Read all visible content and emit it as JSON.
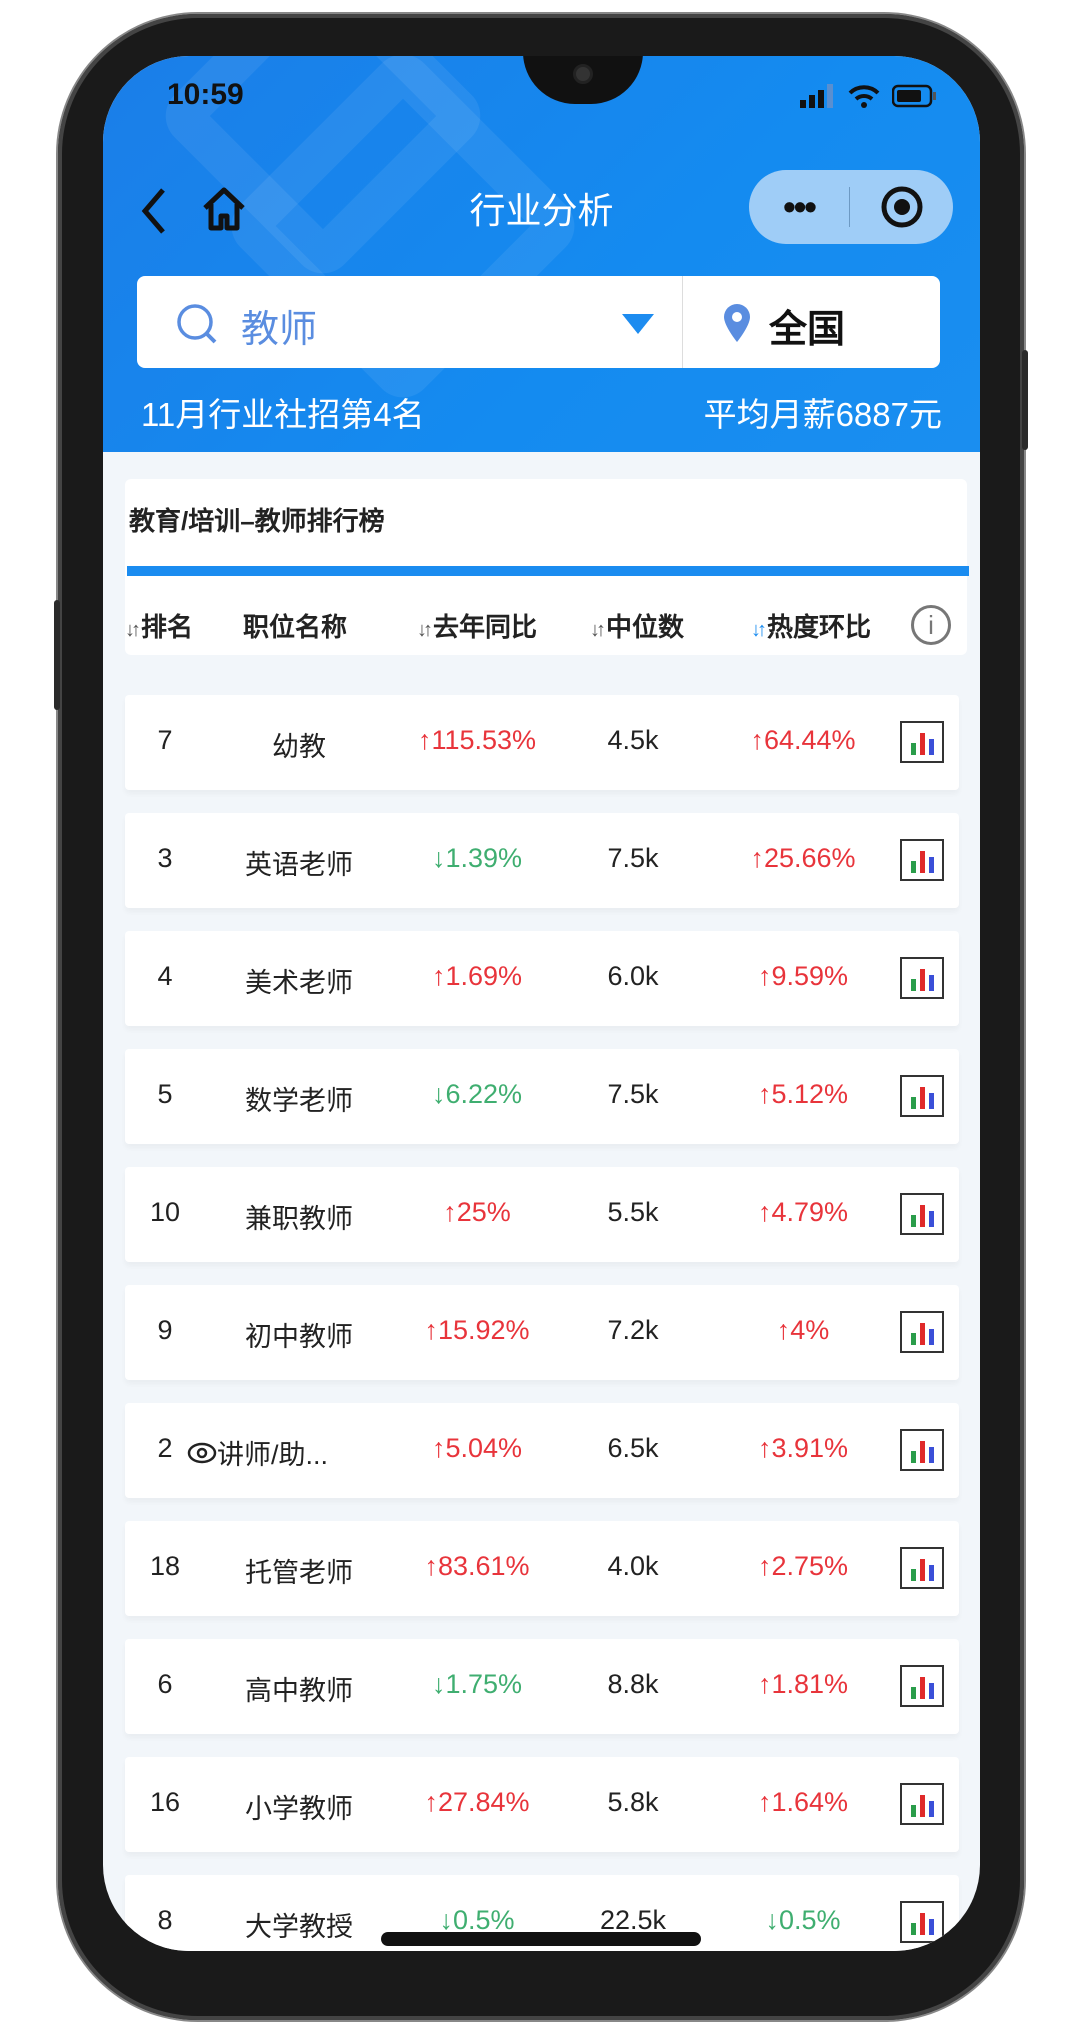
{
  "status": {
    "time": "10:59"
  },
  "nav": {
    "title": "行业分析",
    "back_icon": "chevron-left-icon",
    "home_icon": "home-icon",
    "more_label": "•••"
  },
  "search": {
    "keyword": "教师",
    "location": "全国"
  },
  "summary": {
    "rank_text": "11月行业社招第4名",
    "salary_text": "平均月薪6887元"
  },
  "card": {
    "title": "教育/培训–教师排行榜"
  },
  "table": {
    "headers": [
      "排名",
      "职位名称",
      "去年同比",
      "中位数",
      "热度环比"
    ],
    "rows": [
      {
        "rank": "7",
        "name": "幼教",
        "yoy": "↑115.53%",
        "yoy_dir": "up",
        "median": "4.5k",
        "heat": "↑64.44%",
        "heat_dir": "up"
      },
      {
        "rank": "3",
        "name": "英语老师",
        "yoy": "↓1.39%",
        "yoy_dir": "down",
        "median": "7.5k",
        "heat": "↑25.66%",
        "heat_dir": "up"
      },
      {
        "rank": "4",
        "name": "美术老师",
        "yoy": "↑1.69%",
        "yoy_dir": "up",
        "median": "6.0k",
        "heat": "↑9.59%",
        "heat_dir": "up"
      },
      {
        "rank": "5",
        "name": "数学老师",
        "yoy": "↓6.22%",
        "yoy_dir": "down",
        "median": "7.5k",
        "heat": "↑5.12%",
        "heat_dir": "up"
      },
      {
        "rank": "10",
        "name": "兼职教师",
        "yoy": "↑25%",
        "yoy_dir": "up",
        "median": "5.5k",
        "heat": "↑4.79%",
        "heat_dir": "up"
      },
      {
        "rank": "9",
        "name": "初中教师",
        "yoy": "↑15.92%",
        "yoy_dir": "up",
        "median": "7.2k",
        "heat": "↑4%",
        "heat_dir": "up"
      },
      {
        "rank": "2",
        "name": "讲师/助...",
        "viewed": true,
        "yoy": "↑5.04%",
        "yoy_dir": "up",
        "median": "6.5k",
        "heat": "↑3.91%",
        "heat_dir": "up"
      },
      {
        "rank": "18",
        "name": "托管老师",
        "yoy": "↑83.61%",
        "yoy_dir": "up",
        "median": "4.0k",
        "heat": "↑2.75%",
        "heat_dir": "up"
      },
      {
        "rank": "6",
        "name": "高中教师",
        "yoy": "↓1.75%",
        "yoy_dir": "down",
        "median": "8.8k",
        "heat": "↑1.81%",
        "heat_dir": "up"
      },
      {
        "rank": "16",
        "name": "小学教师",
        "yoy": "↑27.84%",
        "yoy_dir": "up",
        "median": "5.8k",
        "heat": "↑1.64%",
        "heat_dir": "up"
      },
      {
        "rank": "8",
        "name": "大学教授",
        "yoy": "↓0.5%",
        "yoy_dir": "down",
        "median": "22.5k",
        "heat": "↓0.5%",
        "heat_dir": "down"
      }
    ]
  },
  "colors": {
    "brand": "#1a8cf0",
    "up": "#e8343b",
    "down": "#3fae70"
  }
}
